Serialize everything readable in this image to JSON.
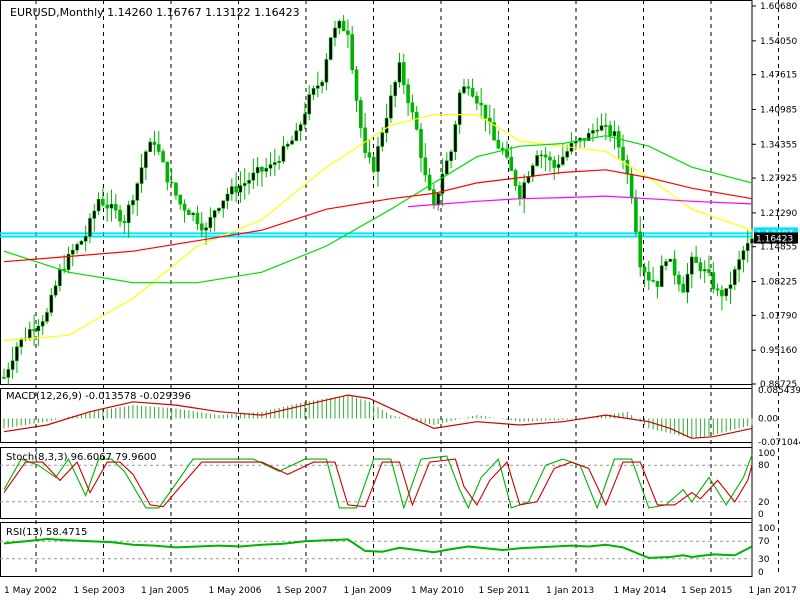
{
  "chart_data": {
    "type": "candlestick",
    "symbol_header": "EURUSD,Monthly  1.14260 1.16767 1.13122 1.16423",
    "y_ticks": [
      "1.60680",
      "1.54050",
      "1.47615",
      "1.40985",
      "1.34355",
      "1.27925",
      "1.21290",
      "1.14855",
      "1.08225",
      "1.01790",
      "0.95160",
      "0.88725"
    ],
    "ylim": [
      0.88725,
      1.6068
    ],
    "x_tick_labels": [
      "1 May 2002",
      "1 Sep 2003",
      "1 Jan 2005",
      "1 May 2006",
      "1 Sep 2007",
      "1 Jan 2009",
      "1 May 2010",
      "1 Sep 2011",
      "1 Jan 2013",
      "1 May 2014",
      "1 Sep 2015",
      "1 Jan 2017"
    ],
    "price_path": [
      [
        0,
        0.9
      ],
      [
        3,
        0.96
      ],
      [
        6,
        0.99
      ],
      [
        10,
        1.02
      ],
      [
        13,
        1.1
      ],
      [
        16,
        1.14
      ],
      [
        19,
        1.17
      ],
      [
        22,
        1.24
      ],
      [
        25,
        1.22
      ],
      [
        28,
        1.2
      ],
      [
        31,
        1.27
      ],
      [
        33,
        1.33
      ],
      [
        35,
        1.35
      ],
      [
        38,
        1.28
      ],
      [
        41,
        1.23
      ],
      [
        44,
        1.21
      ],
      [
        47,
        1.18
      ],
      [
        49,
        1.22
      ],
      [
        52,
        1.25
      ],
      [
        56,
        1.27
      ],
      [
        59,
        1.29
      ],
      [
        62,
        1.3
      ],
      [
        65,
        1.33
      ],
      [
        68,
        1.36
      ],
      [
        71,
        1.43
      ],
      [
        74,
        1.47
      ],
      [
        76,
        1.55
      ],
      [
        78,
        1.57
      ],
      [
        80,
        1.56
      ],
      [
        82,
        1.43
      ],
      [
        84,
        1.32
      ],
      [
        86,
        1.3
      ],
      [
        88,
        1.37
      ],
      [
        90,
        1.43
      ],
      [
        92,
        1.49
      ],
      [
        94,
        1.43
      ],
      [
        96,
        1.37
      ],
      [
        98,
        1.28
      ],
      [
        100,
        1.22
      ],
      [
        102,
        1.29
      ],
      [
        104,
        1.33
      ],
      [
        106,
        1.44
      ],
      [
        108,
        1.46
      ],
      [
        110,
        1.43
      ],
      [
        112,
        1.4
      ],
      [
        114,
        1.35
      ],
      [
        116,
        1.33
      ],
      [
        118,
        1.29
      ],
      [
        120,
        1.25
      ],
      [
        122,
        1.29
      ],
      [
        124,
        1.33
      ],
      [
        126,
        1.32
      ],
      [
        128,
        1.3
      ],
      [
        130,
        1.32
      ],
      [
        132,
        1.34
      ],
      [
        134,
        1.35
      ],
      [
        136,
        1.36
      ],
      [
        138,
        1.38
      ],
      [
        140,
        1.37
      ],
      [
        142,
        1.36
      ],
      [
        144,
        1.32
      ],
      [
        146,
        1.25
      ],
      [
        148,
        1.12
      ],
      [
        150,
        1.09
      ],
      [
        152,
        1.08
      ],
      [
        154,
        1.13
      ],
      [
        156,
        1.1
      ],
      [
        158,
        1.07
      ],
      [
        160,
        1.12
      ],
      [
        162,
        1.11
      ],
      [
        164,
        1.09
      ],
      [
        166,
        1.06
      ],
      [
        168,
        1.06
      ],
      [
        170,
        1.1
      ],
      [
        172,
        1.14
      ],
      [
        174,
        1.16
      ]
    ],
    "candle_count": 175,
    "reference_lines": [
      1.174,
      1.168
    ],
    "price_labels": [
      "1.17407",
      "1.16423"
    ],
    "moving_averages": [
      {
        "color": "#ffff00",
        "points": [
          [
            0,
            0.97
          ],
          [
            15,
            0.98
          ],
          [
            30,
            1.05
          ],
          [
            45,
            1.15
          ],
          [
            60,
            1.2
          ],
          [
            75,
            1.3
          ],
          [
            90,
            1.38
          ],
          [
            100,
            1.4
          ],
          [
            110,
            1.4
          ],
          [
            120,
            1.35
          ],
          [
            130,
            1.34
          ],
          [
            140,
            1.33
          ],
          [
            150,
            1.28
          ],
          [
            160,
            1.22
          ],
          [
            174,
            1.18
          ]
        ]
      },
      {
        "color": "#00dd00",
        "points": [
          [
            0,
            1.14
          ],
          [
            15,
            1.1
          ],
          [
            30,
            1.08
          ],
          [
            45,
            1.08
          ],
          [
            60,
            1.1
          ],
          [
            75,
            1.15
          ],
          [
            90,
            1.22
          ],
          [
            100,
            1.27
          ],
          [
            110,
            1.32
          ],
          [
            120,
            1.34
          ],
          [
            130,
            1.345
          ],
          [
            140,
            1.36
          ],
          [
            150,
            1.34
          ],
          [
            160,
            1.3
          ],
          [
            174,
            1.27
          ]
        ]
      },
      {
        "color": "#ff0000",
        "points": [
          [
            0,
            1.12
          ],
          [
            15,
            1.13
          ],
          [
            30,
            1.14
          ],
          [
            45,
            1.16
          ],
          [
            60,
            1.18
          ],
          [
            75,
            1.22
          ],
          [
            90,
            1.24
          ],
          [
            100,
            1.25
          ],
          [
            110,
            1.27
          ],
          [
            120,
            1.28
          ],
          [
            130,
            1.29
          ],
          [
            140,
            1.295
          ],
          [
            150,
            1.28
          ],
          [
            160,
            1.26
          ],
          [
            174,
            1.24
          ]
        ]
      },
      {
        "color": "#ff00ff",
        "points": [
          [
            94,
            1.225
          ],
          [
            110,
            1.235
          ],
          [
            120,
            1.24
          ],
          [
            130,
            1.242
          ],
          [
            140,
            1.245
          ],
          [
            150,
            1.24
          ],
          [
            160,
            1.235
          ],
          [
            174,
            1.23
          ]
        ]
      }
    ],
    "macd": {
      "label": "MACD(12,26,9) -0.013578 -0.029396",
      "ticks": [
        "0.085439",
        "0.00",
        "-0.071044"
      ],
      "ylim": [
        -0.071044,
        0.085439
      ],
      "hist": [
        [
          0,
          -0.03
        ],
        [
          10,
          -0.01
        ],
        [
          20,
          0.02
        ],
        [
          30,
          0.04
        ],
        [
          40,
          0.03
        ],
        [
          50,
          0.01
        ],
        [
          60,
          0.02
        ],
        [
          70,
          0.05
        ],
        [
          80,
          0.07
        ],
        [
          85,
          0.05
        ],
        [
          90,
          0.01
        ],
        [
          100,
          -0.02
        ],
        [
          110,
          0.01
        ],
        [
          120,
          -0.01
        ],
        [
          130,
          -0.005
        ],
        [
          140,
          0.01
        ],
        [
          145,
          0.02
        ],
        [
          150,
          -0.03
        ],
        [
          160,
          -0.06
        ],
        [
          165,
          -0.05
        ],
        [
          174,
          -0.02
        ]
      ],
      "signal": [
        [
          0,
          -0.04
        ],
        [
          10,
          -0.02
        ],
        [
          20,
          0.02
        ],
        [
          30,
          0.05
        ],
        [
          40,
          0.04
        ],
        [
          50,
          0.02
        ],
        [
          60,
          0.01
        ],
        [
          70,
          0.04
        ],
        [
          80,
          0.07
        ],
        [
          85,
          0.06
        ],
        [
          90,
          0.03
        ],
        [
          100,
          -0.03
        ],
        [
          110,
          -0.01
        ],
        [
          120,
          -0.02
        ],
        [
          130,
          -0.01
        ],
        [
          140,
          0.01
        ],
        [
          150,
          -0.01
        ],
        [
          155,
          -0.03
        ],
        [
          160,
          -0.06
        ],
        [
          165,
          -0.055
        ],
        [
          174,
          -0.03
        ]
      ]
    },
    "stochastic": {
      "label": "Stoch(8,3,3) 96.6067 79.9600",
      "ticks": [
        "100",
        "80",
        "20",
        "0"
      ],
      "main": [
        [
          0,
          40
        ],
        [
          4,
          90
        ],
        [
          8,
          80
        ],
        [
          12,
          60
        ],
        [
          15,
          90
        ],
        [
          19,
          30
        ],
        [
          22,
          90
        ],
        [
          25,
          90
        ],
        [
          28,
          70
        ],
        [
          33,
          10
        ],
        [
          36,
          10
        ],
        [
          40,
          50
        ],
        [
          44,
          90
        ],
        [
          52,
          90
        ],
        [
          58,
          90
        ],
        [
          64,
          70
        ],
        [
          70,
          90
        ],
        [
          75,
          90
        ],
        [
          78,
          10
        ],
        [
          82,
          10
        ],
        [
          86,
          90
        ],
        [
          90,
          90
        ],
        [
          93,
          10
        ],
        [
          97,
          90
        ],
        [
          103,
          95
        ],
        [
          106,
          40
        ],
        [
          108,
          10
        ],
        [
          111,
          60
        ],
        [
          115,
          90
        ],
        [
          118,
          10
        ],
        [
          122,
          20
        ],
        [
          126,
          80
        ],
        [
          130,
          90
        ],
        [
          134,
          80
        ],
        [
          138,
          10
        ],
        [
          142,
          90
        ],
        [
          146,
          90
        ],
        [
          150,
          10
        ],
        [
          154,
          15
        ],
        [
          158,
          40
        ],
        [
          160,
          20
        ],
        [
          164,
          60
        ],
        [
          168,
          15
        ],
        [
          172,
          60
        ],
        [
          174,
          97
        ]
      ],
      "signal": [
        [
          0,
          35
        ],
        [
          5,
          85
        ],
        [
          9,
          85
        ],
        [
          13,
          55
        ],
        [
          17,
          85
        ],
        [
          20,
          35
        ],
        [
          24,
          85
        ],
        [
          27,
          85
        ],
        [
          30,
          65
        ],
        [
          34,
          15
        ],
        [
          37,
          12
        ],
        [
          41,
          45
        ],
        [
          46,
          85
        ],
        [
          54,
          85
        ],
        [
          60,
          85
        ],
        [
          66,
          65
        ],
        [
          72,
          85
        ],
        [
          77,
          85
        ],
        [
          80,
          15
        ],
        [
          84,
          12
        ],
        [
          88,
          85
        ],
        [
          92,
          85
        ],
        [
          95,
          15
        ],
        [
          99,
          85
        ],
        [
          105,
          90
        ],
        [
          107,
          45
        ],
        [
          110,
          15
        ],
        [
          113,
          55
        ],
        [
          117,
          85
        ],
        [
          120,
          15
        ],
        [
          124,
          20
        ],
        [
          128,
          75
        ],
        [
          132,
          85
        ],
        [
          136,
          75
        ],
        [
          140,
          15
        ],
        [
          144,
          85
        ],
        [
          148,
          85
        ],
        [
          152,
          15
        ],
        [
          156,
          15
        ],
        [
          160,
          35
        ],
        [
          162,
          25
        ],
        [
          166,
          55
        ],
        [
          170,
          20
        ],
        [
          173,
          55
        ],
        [
          174,
          80
        ]
      ]
    },
    "rsi": {
      "label": "RSI(13) 58.4715",
      "ticks": [
        "100",
        "70",
        "30",
        "0"
      ],
      "values": [
        [
          0,
          65
        ],
        [
          5,
          70
        ],
        [
          10,
          75
        ],
        [
          15,
          72
        ],
        [
          20,
          70
        ],
        [
          25,
          68
        ],
        [
          30,
          62
        ],
        [
          35,
          60
        ],
        [
          40,
          56
        ],
        [
          45,
          58
        ],
        [
          50,
          60
        ],
        [
          55,
          58
        ],
        [
          60,
          62
        ],
        [
          65,
          64
        ],
        [
          70,
          70
        ],
        [
          75,
          72
        ],
        [
          80,
          74
        ],
        [
          84,
          48
        ],
        [
          88,
          46
        ],
        [
          92,
          55
        ],
        [
          96,
          50
        ],
        [
          100,
          45
        ],
        [
          104,
          52
        ],
        [
          108,
          58
        ],
        [
          112,
          54
        ],
        [
          116,
          50
        ],
        [
          120,
          54
        ],
        [
          124,
          56
        ],
        [
          128,
          58
        ],
        [
          132,
          60
        ],
        [
          136,
          58
        ],
        [
          140,
          62
        ],
        [
          144,
          56
        ],
        [
          148,
          40
        ],
        [
          150,
          32
        ],
        [
          155,
          34
        ],
        [
          158,
          38
        ],
        [
          160,
          34
        ],
        [
          165,
          40
        ],
        [
          170,
          38
        ],
        [
          174,
          58
        ]
      ]
    },
    "colors": {
      "bull": "#00b300",
      "bear": "#00b300",
      "cyan": "#00e5ff",
      "grid": "#000000",
      "axis_bg": "#ffffff",
      "price_tag": "#ffffff"
    }
  }
}
